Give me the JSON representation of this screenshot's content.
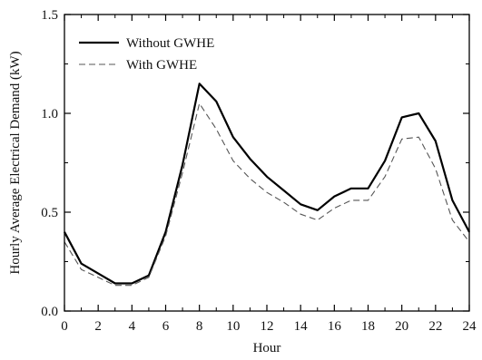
{
  "chart_data": {
    "type": "line",
    "xlabel": "Hour",
    "ylabel": "Hourly Average Electrical Demand (kW)",
    "xlim": [
      0,
      24
    ],
    "ylim": [
      0.0,
      1.5
    ],
    "xticks": [
      0,
      2,
      4,
      6,
      8,
      10,
      12,
      14,
      16,
      18,
      20,
      22,
      24
    ],
    "yticks": [
      0.0,
      0.5,
      1.0,
      1.5
    ],
    "xtick_labels": [
      "0",
      "2",
      "4",
      "6",
      "8",
      "10",
      "12",
      "14",
      "16",
      "18",
      "20",
      "22",
      "24"
    ],
    "ytick_labels": [
      "0.0",
      "0.5",
      "1.0",
      "1.5"
    ],
    "grid": false,
    "legend_position": "top-left",
    "x": [
      0,
      1,
      2,
      3,
      4,
      5,
      6,
      7,
      8,
      9,
      10,
      11,
      12,
      13,
      14,
      15,
      16,
      17,
      18,
      19,
      20,
      21,
      22,
      23,
      24
    ],
    "series": [
      {
        "name": "Without GWHE",
        "style": "solid",
        "color": "#000000",
        "values": [
          0.4,
          0.24,
          0.19,
          0.14,
          0.14,
          0.18,
          0.4,
          0.74,
          1.15,
          1.06,
          0.88,
          0.77,
          0.68,
          0.61,
          0.54,
          0.51,
          0.58,
          0.62,
          0.62,
          0.76,
          0.98,
          1.0,
          0.86,
          0.56,
          0.4
        ]
      },
      {
        "name": "With GWHE",
        "style": "dashed",
        "color": "#555555",
        "values": [
          0.35,
          0.21,
          0.17,
          0.13,
          0.13,
          0.17,
          0.38,
          0.7,
          1.05,
          0.92,
          0.76,
          0.67,
          0.6,
          0.55,
          0.49,
          0.46,
          0.52,
          0.56,
          0.56,
          0.68,
          0.87,
          0.88,
          0.72,
          0.46,
          0.35
        ]
      }
    ]
  }
}
